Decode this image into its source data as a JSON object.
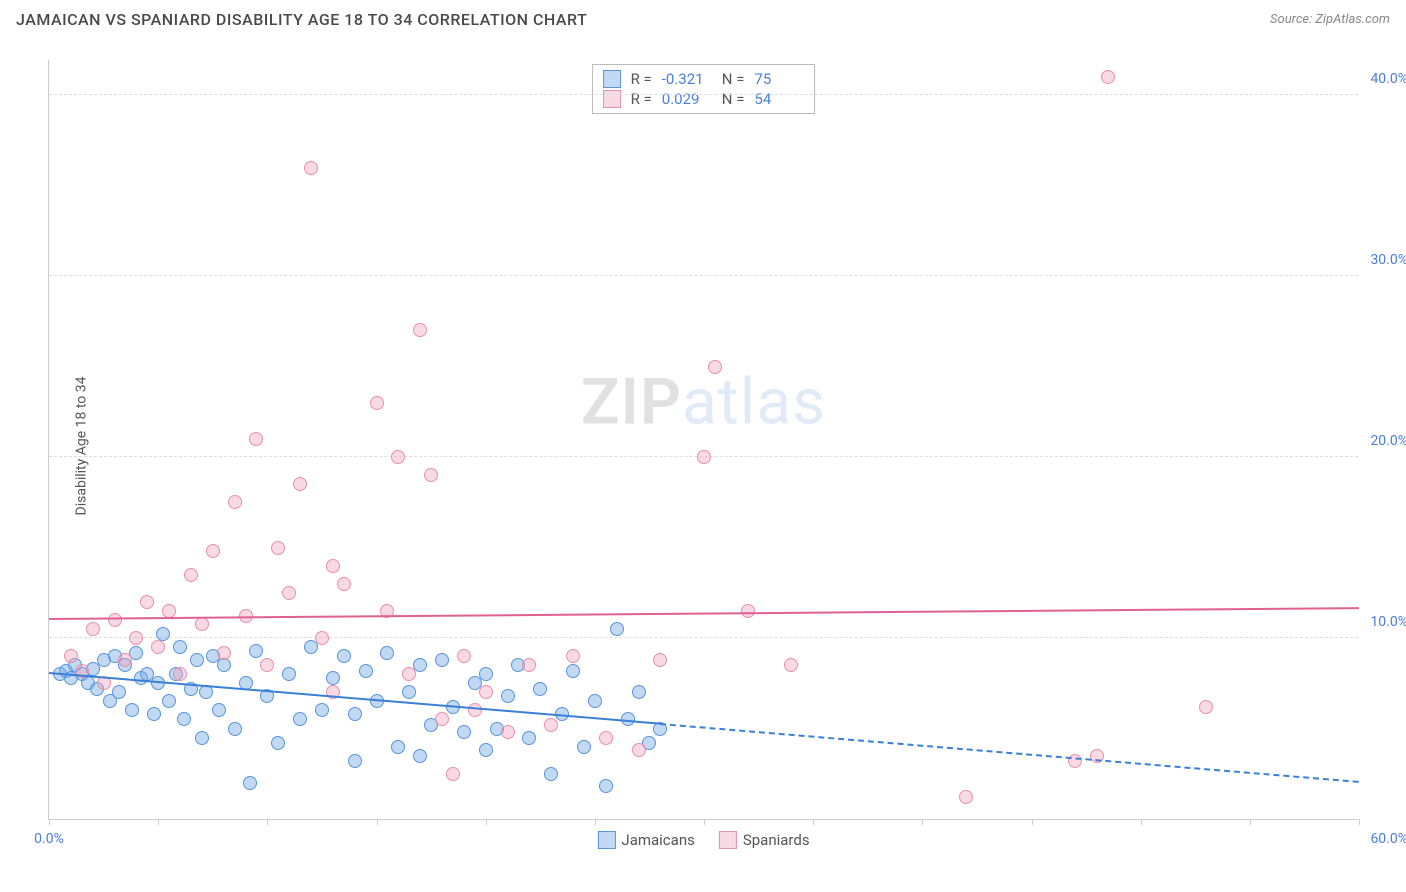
{
  "header": {
    "title": "JAMAICAN VS SPANIARD DISABILITY AGE 18 TO 34 CORRELATION CHART",
    "source": "Source: ZipAtlas.com"
  },
  "chart": {
    "type": "scatter",
    "ylabel": "Disability Age 18 to 34",
    "xlim": [
      0,
      60
    ],
    "ylim": [
      0,
      42
    ],
    "xticks": [
      0,
      5,
      10,
      15,
      20,
      25,
      30,
      35,
      40,
      45,
      50,
      55,
      60
    ],
    "xtick_labels": {
      "0": "0.0%",
      "60": "60.0%"
    },
    "yticks": [
      10,
      20,
      30,
      40
    ],
    "ytick_labels": {
      "10": "10.0%",
      "20": "20.0%",
      "30": "30.0%",
      "40": "40.0%"
    },
    "grid_color": "#dddddd",
    "background_color": "#ffffff",
    "axis_color": "#cccccc",
    "tick_label_color": "#4a7fd8",
    "point_radius": 7,
    "point_stroke_width": 1,
    "series": [
      {
        "name": "Jamaicans",
        "fill_color": "rgba(120,170,230,0.45)",
        "stroke_color": "#5a95d8",
        "R": "-0.321",
        "N": "75",
        "trend": {
          "x1": 0,
          "y1": 8.0,
          "x2": 28,
          "y2": 5.2,
          "extend_x": 60,
          "extend_y": 2.0,
          "color": "#3a7fd8"
        },
        "points": [
          [
            0.5,
            8.0
          ],
          [
            0.8,
            8.2
          ],
          [
            1.0,
            7.8
          ],
          [
            1.2,
            8.5
          ],
          [
            1.5,
            8.0
          ],
          [
            1.8,
            7.5
          ],
          [
            2.0,
            8.3
          ],
          [
            2.2,
            7.2
          ],
          [
            2.5,
            8.8
          ],
          [
            2.8,
            6.5
          ],
          [
            3.0,
            9.0
          ],
          [
            3.2,
            7.0
          ],
          [
            3.5,
            8.5
          ],
          [
            3.8,
            6.0
          ],
          [
            4.0,
            9.2
          ],
          [
            4.2,
            7.8
          ],
          [
            4.5,
            8.0
          ],
          [
            4.8,
            5.8
          ],
          [
            5.0,
            7.5
          ],
          [
            5.2,
            10.2
          ],
          [
            5.5,
            6.5
          ],
          [
            5.8,
            8.0
          ],
          [
            6.0,
            9.5
          ],
          [
            6.2,
            5.5
          ],
          [
            6.5,
            7.2
          ],
          [
            6.8,
            8.8
          ],
          [
            7.0,
            4.5
          ],
          [
            7.2,
            7.0
          ],
          [
            7.5,
            9.0
          ],
          [
            7.8,
            6.0
          ],
          [
            8.0,
            8.5
          ],
          [
            8.5,
            5.0
          ],
          [
            9.0,
            7.5
          ],
          [
            9.2,
            2.0
          ],
          [
            9.5,
            9.3
          ],
          [
            10.0,
            6.8
          ],
          [
            10.5,
            4.2
          ],
          [
            11.0,
            8.0
          ],
          [
            11.5,
            5.5
          ],
          [
            12.0,
            9.5
          ],
          [
            12.5,
            6.0
          ],
          [
            13.0,
            7.8
          ],
          [
            13.5,
            9.0
          ],
          [
            14.0,
            5.8
          ],
          [
            14.5,
            8.2
          ],
          [
            15.0,
            6.5
          ],
          [
            15.5,
            9.2
          ],
          [
            16.0,
            4.0
          ],
          [
            16.5,
            7.0
          ],
          [
            17.0,
            8.5
          ],
          [
            17.5,
            5.2
          ],
          [
            18.0,
            8.8
          ],
          [
            18.5,
            6.2
          ],
          [
            19.0,
            4.8
          ],
          [
            19.5,
            7.5
          ],
          [
            20.0,
            8.0
          ],
          [
            20.5,
            5.0
          ],
          [
            21.0,
            6.8
          ],
          [
            21.5,
            8.5
          ],
          [
            22.0,
            4.5
          ],
          [
            22.5,
            7.2
          ],
          [
            23.0,
            2.5
          ],
          [
            23.5,
            5.8
          ],
          [
            24.0,
            8.2
          ],
          [
            24.5,
            4.0
          ],
          [
            25.0,
            6.5
          ],
          [
            25.5,
            1.8
          ],
          [
            26.0,
            10.5
          ],
          [
            26.5,
            5.5
          ],
          [
            27.0,
            7.0
          ],
          [
            27.5,
            4.2
          ],
          [
            28.0,
            5.0
          ],
          [
            17.0,
            3.5
          ],
          [
            20.0,
            3.8
          ],
          [
            14.0,
            3.2
          ]
        ]
      },
      {
        "name": "Spaniards",
        "fill_color": "rgba(240,160,185,0.40)",
        "stroke_color": "#e890ad",
        "R": "0.029",
        "N": "54",
        "trend": {
          "x1": 0,
          "y1": 11.0,
          "x2": 60,
          "y2": 11.6,
          "color": "#e06090"
        },
        "points": [
          [
            1.0,
            9.0
          ],
          [
            1.5,
            8.2
          ],
          [
            2.0,
            10.5
          ],
          [
            2.5,
            7.5
          ],
          [
            3.0,
            11.0
          ],
          [
            3.5,
            8.8
          ],
          [
            4.0,
            10.0
          ],
          [
            4.5,
            12.0
          ],
          [
            5.0,
            9.5
          ],
          [
            5.5,
            11.5
          ],
          [
            6.0,
            8.0
          ],
          [
            6.5,
            13.5
          ],
          [
            7.0,
            10.8
          ],
          [
            7.5,
            14.8
          ],
          [
            8.0,
            9.2
          ],
          [
            8.5,
            17.5
          ],
          [
            9.0,
            11.2
          ],
          [
            9.5,
            21.0
          ],
          [
            10.0,
            8.5
          ],
          [
            10.5,
            15.0
          ],
          [
            11.0,
            12.5
          ],
          [
            11.5,
            18.5
          ],
          [
            12.0,
            36.0
          ],
          [
            12.5,
            10.0
          ],
          [
            13.0,
            14.0
          ],
          [
            13.5,
            13.0
          ],
          [
            15.0,
            23.0
          ],
          [
            15.5,
            11.5
          ],
          [
            16.0,
            20.0
          ],
          [
            16.5,
            8.0
          ],
          [
            17.0,
            27.0
          ],
          [
            17.5,
            19.0
          ],
          [
            18.0,
            5.5
          ],
          [
            18.5,
            2.5
          ],
          [
            19.0,
            9.0
          ],
          [
            20.0,
            7.0
          ],
          [
            21.0,
            4.8
          ],
          [
            22.0,
            8.5
          ],
          [
            23.0,
            5.2
          ],
          [
            24.0,
            9.0
          ],
          [
            25.5,
            4.5
          ],
          [
            27.0,
            3.8
          ],
          [
            28.0,
            8.8
          ],
          [
            30.0,
            20.0
          ],
          [
            30.5,
            25.0
          ],
          [
            32.0,
            11.5
          ],
          [
            34.0,
            8.5
          ],
          [
            42.0,
            1.2
          ],
          [
            47.0,
            3.2
          ],
          [
            48.0,
            3.5
          ],
          [
            48.5,
            41.0
          ],
          [
            53.0,
            6.2
          ],
          [
            13.0,
            7.0
          ],
          [
            19.5,
            6.0
          ]
        ]
      }
    ],
    "stats_box": {
      "rows": [
        {
          "swatch_fill": "rgba(120,170,230,0.45)",
          "swatch_stroke": "#5a95d8",
          "r_label": "R =",
          "r_val": "-0.321",
          "n_label": "N =",
          "n_val": "75"
        },
        {
          "swatch_fill": "rgba(240,160,185,0.40)",
          "swatch_stroke": "#e890ad",
          "r_label": "R =",
          "r_val": "0.029",
          "n_label": "N =",
          "n_val": "54"
        }
      ]
    },
    "bottom_legend": [
      {
        "swatch_fill": "rgba(120,170,230,0.45)",
        "swatch_stroke": "#5a95d8",
        "label": "Jamaicans"
      },
      {
        "swatch_fill": "rgba(240,160,185,0.40)",
        "swatch_stroke": "#e890ad",
        "label": "Spaniards"
      }
    ],
    "watermark": {
      "part1": "ZIP",
      "part2": "atlas"
    }
  }
}
